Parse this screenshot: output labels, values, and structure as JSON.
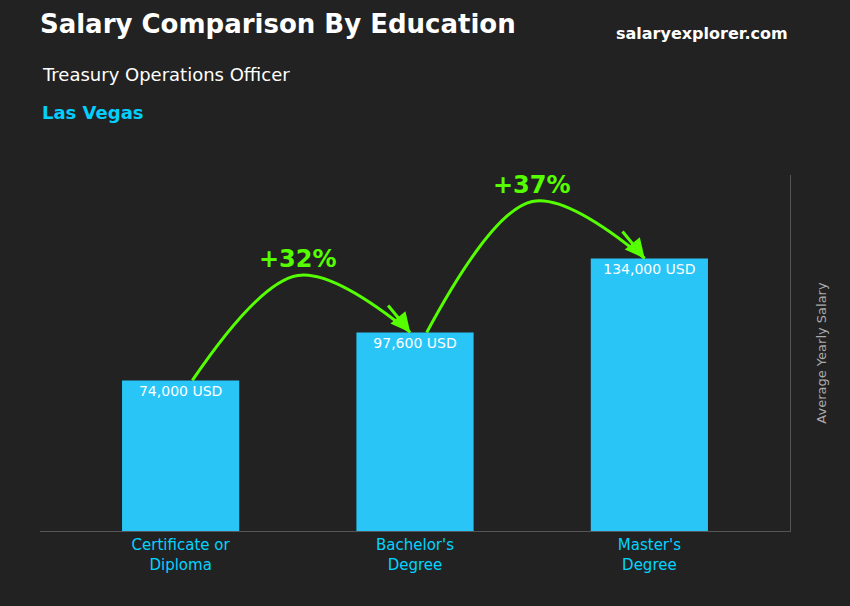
{
  "chart_data": {
    "type": "bar",
    "title": "Salary Comparison By Education",
    "subtitle": "Treasury Operations Officer",
    "categories": [
      "Certificate or\nDiploma",
      "Bachelor's\nDegree",
      "Master's\nDegree"
    ],
    "values": [
      74000,
      97600,
      134000
    ],
    "value_labels": [
      "74,000 USD",
      "97,600 USD",
      "134,000 USD"
    ],
    "data_labels": true,
    "color": "#29c5f6",
    "ylabel": "Average Yearly Salary",
    "ylim": [
      0,
      175000
    ],
    "yticks": [],
    "tick_labels": "x",
    "grid": false,
    "annotations": [
      {
        "text": "Las Vegas",
        "color": "#00cfff"
      },
      {
        "text": "salaryexplorer.com",
        "color": "#ffffff"
      },
      {
        "text": "+32%",
        "color": "#55ff00"
      },
      {
        "text": "+37%",
        "color": "#55ff00"
      }
    ]
  }
}
